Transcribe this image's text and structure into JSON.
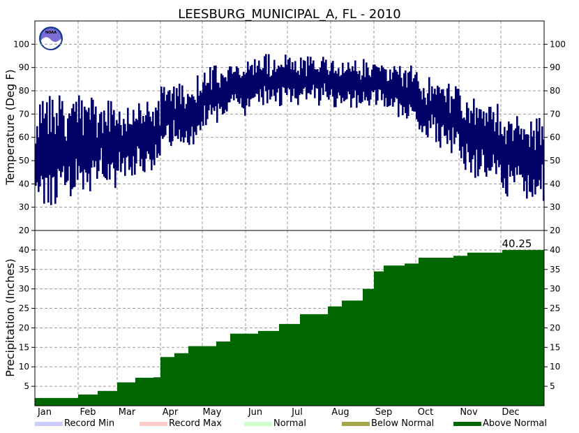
{
  "chart_data": {
    "title": "LEESBURG_MUNICIPAL_A, FL - 2010",
    "months": [
      "Jan",
      "Feb",
      "Mar",
      "Apr",
      "May",
      "Jun",
      "Jul",
      "Aug",
      "Sep",
      "Oct",
      "Nov",
      "Dec"
    ],
    "temperature_panel": {
      "type": "bar",
      "ylabel": "Temperature (Deg F)",
      "ylim": [
        20,
        110
      ],
      "yticks": [
        30,
        40,
        50,
        60,
        70,
        80,
        90,
        100
      ],
      "grid": true,
      "bar_color": "#000066",
      "series": [
        {
          "name": "Daily temperature range",
          "days_per_month": [
            31,
            28,
            31,
            30,
            31,
            30,
            31,
            31,
            30,
            31,
            30,
            31
          ],
          "monthly_low_approx": [
            30,
            35,
            42,
            52,
            65,
            73,
            74,
            73,
            72,
            58,
            45,
            32
          ],
          "monthly_high_approx": [
            78,
            78,
            72,
            84,
            90,
            96,
            95,
            94,
            93,
            88,
            78,
            70
          ]
        }
      ]
    },
    "precipitation_panel": {
      "type": "area",
      "ylabel": "Precipitation (Inches)",
      "ylim": [
        0,
        45
      ],
      "yticks": [
        5,
        10,
        15,
        20,
        25,
        30,
        35,
        40
      ],
      "grid": true,
      "fill_color": "#006600",
      "annotation": "40.25",
      "cumulative_points": [
        {
          "day": 0,
          "value": 2.0
        },
        {
          "day": 20,
          "value": 2.0
        },
        {
          "day": 31,
          "value": 2.9
        },
        {
          "day": 45,
          "value": 3.8
        },
        {
          "day": 59,
          "value": 6.0
        },
        {
          "day": 72,
          "value": 7.2
        },
        {
          "day": 85,
          "value": 7.3
        },
        {
          "day": 90,
          "value": 12.5
        },
        {
          "day": 100,
          "value": 13.5
        },
        {
          "day": 110,
          "value": 15.3
        },
        {
          "day": 130,
          "value": 16.5
        },
        {
          "day": 140,
          "value": 18.5
        },
        {
          "day": 160,
          "value": 19.2
        },
        {
          "day": 175,
          "value": 21.0
        },
        {
          "day": 190,
          "value": 23.5
        },
        {
          "day": 210,
          "value": 25.5
        },
        {
          "day": 220,
          "value": 27.0
        },
        {
          "day": 235,
          "value": 30.0
        },
        {
          "day": 243,
          "value": 34.5
        },
        {
          "day": 250,
          "value": 36.0
        },
        {
          "day": 265,
          "value": 36.5
        },
        {
          "day": 275,
          "value": 38.0
        },
        {
          "day": 300,
          "value": 38.5
        },
        {
          "day": 310,
          "value": 39.3
        },
        {
          "day": 335,
          "value": 40.0
        },
        {
          "day": 365,
          "value": 40.25
        }
      ]
    },
    "legend": [
      {
        "label": "Record Min",
        "color": "#ccccff"
      },
      {
        "label": "Record Max",
        "color": "#ffcccc"
      },
      {
        "label": "Normal",
        "color": "#ccffcc"
      },
      {
        "label": "Below Normal",
        "color": "#a6a64d"
      },
      {
        "label": "Above Normal",
        "color": "#006600"
      }
    ],
    "logo_text": "NOAA"
  }
}
